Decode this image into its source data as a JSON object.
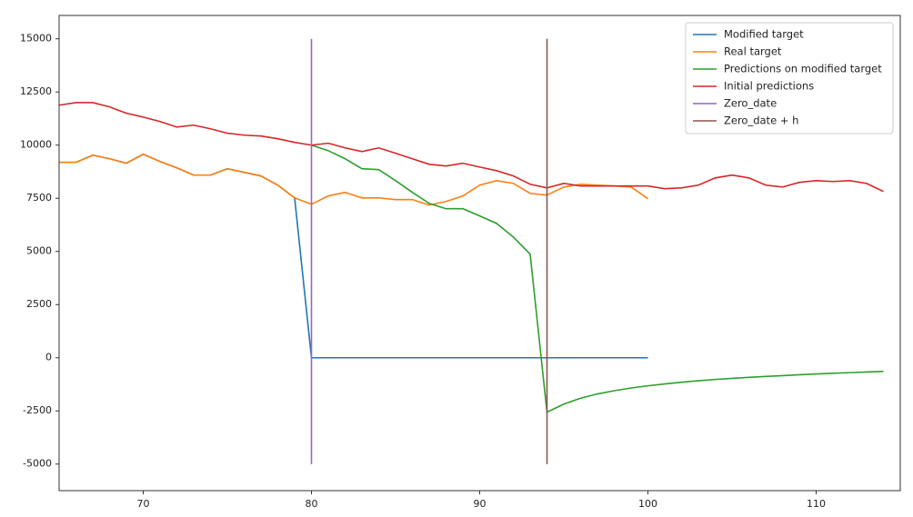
{
  "chart_data": {
    "type": "line",
    "series": [
      {
        "name": "Modified target",
        "color": "#1f77b4",
        "x": [
          65,
          66,
          67,
          68,
          69,
          70,
          71,
          72,
          73,
          74,
          75,
          76,
          77,
          78,
          79,
          80,
          81,
          82,
          83,
          84,
          85,
          86,
          87,
          88,
          89,
          90,
          91,
          92,
          93,
          94,
          95,
          96,
          97,
          98,
          99,
          100
        ],
        "values": [
          9190,
          9190,
          9530,
          9360,
          9150,
          9570,
          9230,
          8930,
          8590,
          8590,
          8890,
          8720,
          8550,
          8120,
          7520,
          0,
          0,
          0,
          0,
          0,
          0,
          0,
          0,
          0,
          0,
          0,
          0,
          0,
          0,
          0,
          0,
          0,
          0,
          0,
          0,
          0
        ]
      },
      {
        "name": "Real target",
        "color": "#ff7f0e",
        "x": [
          65,
          66,
          67,
          68,
          69,
          70,
          71,
          72,
          73,
          74,
          75,
          76,
          77,
          78,
          79,
          80,
          81,
          82,
          83,
          84,
          85,
          86,
          87,
          88,
          89,
          90,
          91,
          92,
          93,
          94,
          95,
          96,
          97,
          98,
          99,
          100
        ],
        "values": [
          9190,
          9190,
          9530,
          9360,
          9150,
          9570,
          9230,
          8930,
          8590,
          8590,
          8890,
          8720,
          8550,
          8120,
          7520,
          7220,
          7610,
          7780,
          7520,
          7520,
          7440,
          7440,
          7180,
          7350,
          7610,
          8120,
          8330,
          8200,
          7730,
          7650,
          8030,
          8160,
          8120,
          8080,
          8030,
          7480
        ]
      },
      {
        "name": "Predictions on modified target",
        "color": "#2ca02c",
        "x": [
          80,
          81,
          82,
          83,
          84,
          85,
          86,
          87,
          88,
          89,
          90,
          91,
          92,
          93,
          94,
          95,
          96,
          97,
          98,
          99,
          100,
          101,
          102,
          103,
          104,
          105,
          106,
          107,
          108,
          109,
          110,
          111,
          112,
          113,
          114
        ],
        "values": [
          10000,
          9740,
          9360,
          8890,
          8850,
          8330,
          7780,
          7260,
          7010,
          7010,
          6670,
          6320,
          5680,
          4870,
          -2560,
          -2180,
          -1900,
          -1700,
          -1550,
          -1420,
          -1320,
          -1230,
          -1150,
          -1080,
          -1020,
          -970,
          -920,
          -880,
          -840,
          -800,
          -760,
          -730,
          -700,
          -670,
          -640
        ]
      },
      {
        "name": "Initial predictions",
        "color": "#d62728",
        "x": [
          65,
          66,
          67,
          68,
          69,
          70,
          71,
          72,
          73,
          74,
          75,
          76,
          77,
          78,
          79,
          80,
          81,
          82,
          83,
          84,
          85,
          86,
          87,
          88,
          89,
          90,
          91,
          92,
          93,
          94,
          95,
          96,
          97,
          98,
          99,
          100,
          101,
          102,
          103,
          104,
          105,
          106,
          107,
          108,
          109,
          110,
          111,
          112,
          113,
          114
        ],
        "values": [
          11880,
          12000,
          12000,
          11800,
          11500,
          11320,
          11110,
          10850,
          10940,
          10770,
          10560,
          10470,
          10430,
          10300,
          10130,
          10000,
          10090,
          9870,
          9700,
          9870,
          9620,
          9360,
          9100,
          9020,
          9150,
          8970,
          8800,
          8550,
          8160,
          7990,
          8200,
          8080,
          8080,
          8080,
          8080,
          8080,
          7950,
          7990,
          8120,
          8460,
          8590,
          8460,
          8120,
          8030,
          8250,
          8330,
          8290,
          8330,
          8200,
          7820
        ]
      },
      {
        "name": "Zero_date",
        "color": "#9467bd",
        "x": [
          80,
          80
        ],
        "values": [
          -5000,
          15000
        ]
      },
      {
        "name": "Zero_date + h",
        "color": "#8c564b",
        "x": [
          94,
          94
        ],
        "values": [
          -5000,
          15000
        ]
      }
    ],
    "xlim": [
      65,
      115
    ],
    "ylim": [
      -6250,
      16100
    ],
    "xticks": [
      70,
      80,
      90,
      100,
      110
    ],
    "yticks": [
      -5000,
      -2500,
      0,
      2500,
      5000,
      7500,
      10000,
      12500,
      15000
    ],
    "grid": false,
    "legend": "upper right"
  }
}
